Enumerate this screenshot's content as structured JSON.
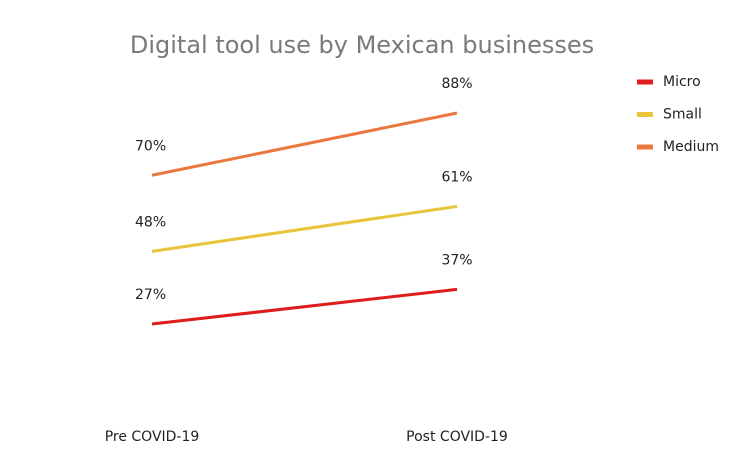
{
  "chart_data": {
    "type": "line",
    "title": "Digital tool use by Mexican businesses",
    "categories": [
      "Pre COVID-19",
      "Post COVID-19"
    ],
    "series": [
      {
        "name": "Micro",
        "color": "#e01b1b",
        "values": [
          27,
          37
        ],
        "value_labels": [
          "27%",
          "37%"
        ]
      },
      {
        "name": "Small",
        "color": "#e8c53a",
        "values": [
          48,
          61
        ],
        "value_labels": [
          "48%",
          "61%"
        ]
      },
      {
        "name": "Medium",
        "color": "#e9773e",
        "values": [
          70,
          88
        ],
        "value_labels": [
          "70%",
          "88%"
        ]
      }
    ],
    "legend": "right"
  }
}
